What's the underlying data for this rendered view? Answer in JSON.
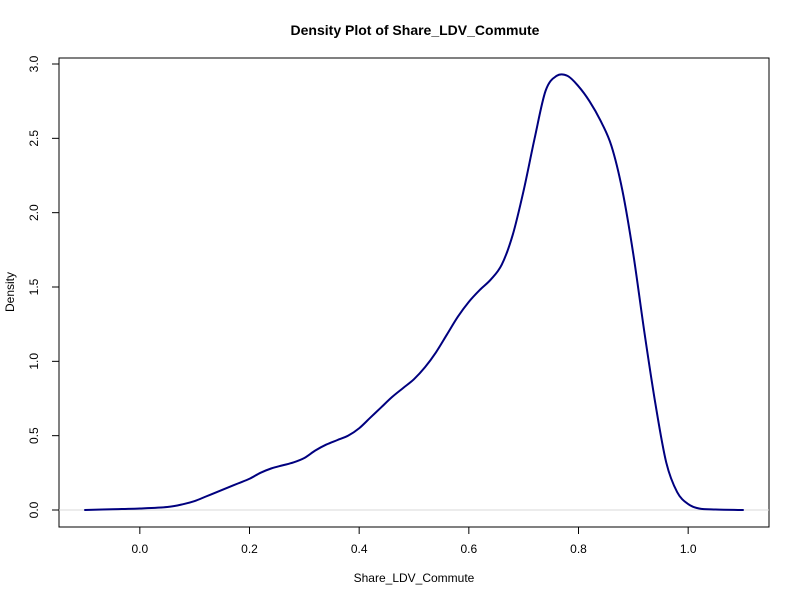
{
  "chart_data": {
    "type": "line",
    "title": "Density Plot of Share_LDV_Commute",
    "xlabel": "Share_LDV_Commute",
    "ylabel": "Density",
    "xlim": [
      -0.1,
      1.1
    ],
    "ylim": [
      0.0,
      3.0
    ],
    "x_ticks": [
      0.0,
      0.2,
      0.4,
      0.6,
      0.8,
      1.0
    ],
    "x_tick_labels": [
      "0.0",
      "0.2",
      "0.4",
      "0.6",
      "0.8",
      "1.0"
    ],
    "y_ticks": [
      0.0,
      0.5,
      1.0,
      1.5,
      2.0,
      2.5,
      3.0
    ],
    "y_tick_labels": [
      "0.0",
      "0.5",
      "1.0",
      "1.5",
      "2.0",
      "2.5",
      "3.0"
    ],
    "grid": false,
    "baseline": 0.0,
    "series": [
      {
        "color": "#00007f",
        "x": [
          -0.1,
          -0.05,
          0.0,
          0.05,
          0.08,
          0.1,
          0.12,
          0.14,
          0.16,
          0.18,
          0.2,
          0.22,
          0.24,
          0.26,
          0.28,
          0.3,
          0.32,
          0.34,
          0.36,
          0.38,
          0.4,
          0.42,
          0.44,
          0.46,
          0.48,
          0.5,
          0.52,
          0.54,
          0.56,
          0.58,
          0.6,
          0.62,
          0.64,
          0.66,
          0.68,
          0.7,
          0.72,
          0.74,
          0.76,
          0.78,
          0.8,
          0.82,
          0.84,
          0.86,
          0.88,
          0.9,
          0.92,
          0.94,
          0.96,
          0.98,
          1.0,
          1.02,
          1.05,
          1.1
        ],
        "y": [
          0.0,
          0.005,
          0.01,
          0.02,
          0.04,
          0.06,
          0.09,
          0.12,
          0.15,
          0.18,
          0.21,
          0.25,
          0.28,
          0.3,
          0.32,
          0.35,
          0.4,
          0.44,
          0.47,
          0.5,
          0.55,
          0.62,
          0.69,
          0.76,
          0.82,
          0.88,
          0.96,
          1.06,
          1.18,
          1.3,
          1.4,
          1.48,
          1.55,
          1.65,
          1.85,
          2.15,
          2.5,
          2.82,
          2.92,
          2.92,
          2.85,
          2.75,
          2.62,
          2.45,
          2.15,
          1.72,
          1.2,
          0.72,
          0.32,
          0.12,
          0.04,
          0.01,
          0.003,
          0.0
        ]
      }
    ]
  }
}
